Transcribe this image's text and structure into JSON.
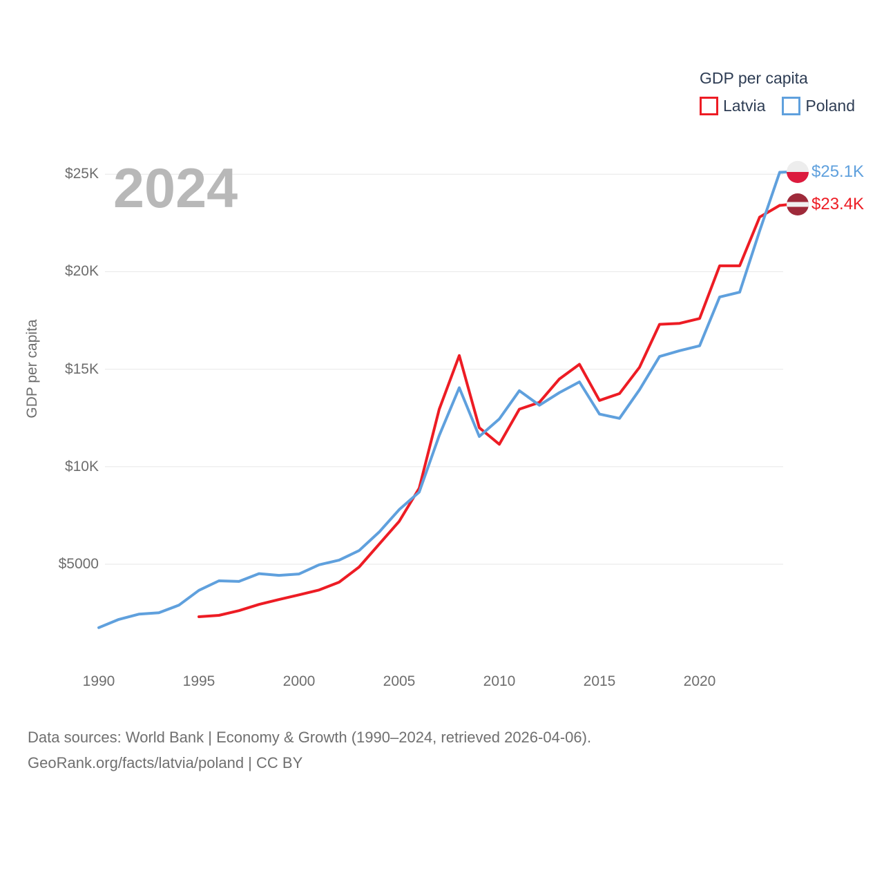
{
  "watermark": "2024",
  "legend": {
    "title": "GDP per capita",
    "items": [
      {
        "label": "Latvia",
        "color": "#ed1c24"
      },
      {
        "label": "Poland",
        "color": "#5fa0dd"
      }
    ]
  },
  "y_axis": {
    "title": "GDP per capita",
    "ticks": [
      {
        "label": "$25K",
        "value": 25000
      },
      {
        "label": "$20K",
        "value": 20000
      },
      {
        "label": "$15K",
        "value": 15000
      },
      {
        "label": "$10K",
        "value": 10000
      },
      {
        "label": "$5000",
        "value": 5000
      }
    ]
  },
  "x_axis": {
    "ticks": [
      1990,
      1995,
      2000,
      2005,
      2010,
      2015,
      2020
    ]
  },
  "end_labels": [
    {
      "series": "Poland",
      "text": "$25.1K",
      "color": "#5fa0dd"
    },
    {
      "series": "Latvia",
      "text": "$23.4K",
      "color": "#ed1c24"
    }
  ],
  "flags": {
    "poland": {
      "top": "#ededed",
      "bottom": "#dc1b3e"
    },
    "latvia": {
      "base": "#9e2a3a",
      "stripe": "#f0f0f0"
    }
  },
  "source": {
    "line1": "Data sources: World Bank | Economy & Growth (1990–2024, retrieved 2026-04-06).",
    "line2": "GeoRank.org/facts/latvia/poland | CC BY"
  },
  "chart_data": {
    "type": "line",
    "title": "GDP per capita",
    "ylabel": "GDP per capita",
    "xlim": [
      1990,
      2024
    ],
    "ylim": [
      5000,
      25000
    ],
    "grid": "horizontal",
    "legend_position": "top-right",
    "series": [
      {
        "name": "Latvia",
        "color": "#ed1c24",
        "start_year": 1995,
        "end_label": "$23.4K",
        "values": [
          2310,
          2380,
          2620,
          2940,
          3190,
          3430,
          3680,
          4080,
          4860,
          6030,
          7200,
          8900,
          12950,
          15700,
          12000,
          11150,
          12950,
          13300,
          14500,
          15250,
          13400,
          13750,
          15100,
          17300,
          17350,
          17600,
          20300,
          20300,
          22800,
          23400
        ]
      },
      {
        "name": "Poland",
        "color": "#5fa0dd",
        "start_year": 1990,
        "end_label": "$25.1K",
        "values": [
          1750,
          2170,
          2440,
          2510,
          2900,
          3660,
          4150,
          4120,
          4520,
          4430,
          4500,
          4970,
          5210,
          5700,
          6650,
          7800,
          8700,
          11600,
          14050,
          11550,
          12450,
          13900,
          13150,
          13800,
          14350,
          12700,
          12480,
          13950,
          15650,
          15950,
          16200,
          18700,
          18950,
          22100,
          25100
        ]
      }
    ]
  }
}
